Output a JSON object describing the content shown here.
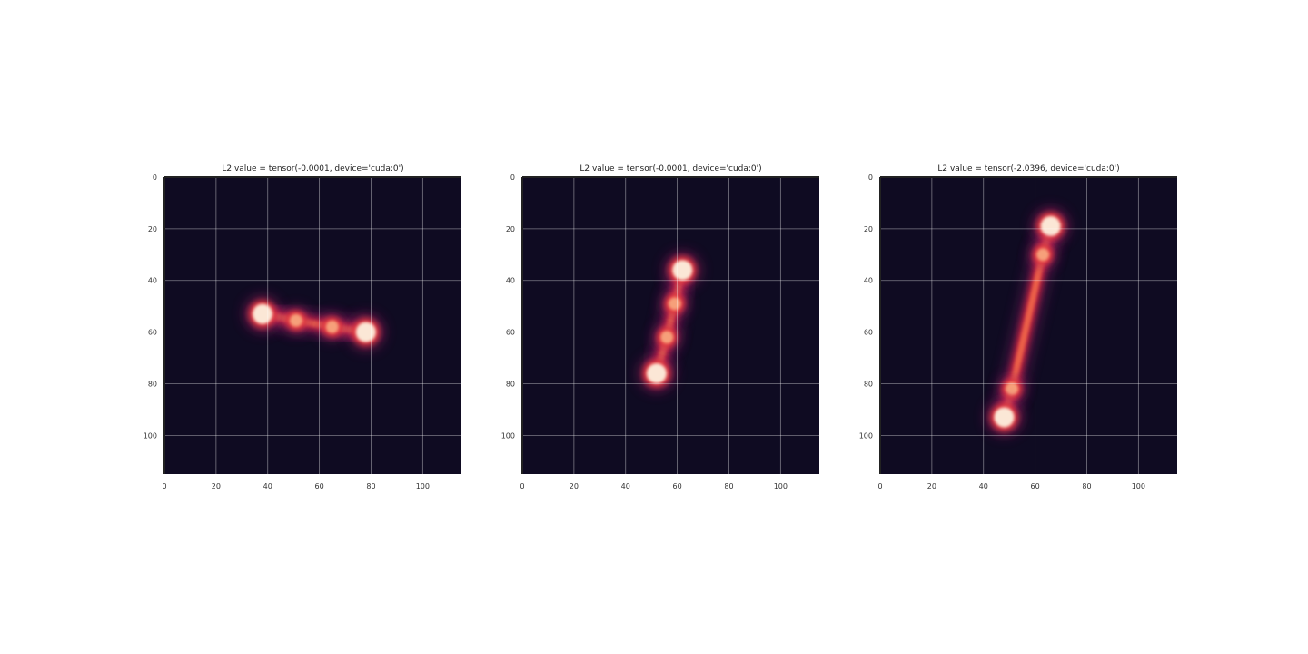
{
  "chart_data": [
    {
      "type": "heatmap",
      "title": "L2 value = tensor(-0.0001, device='cuda:0')",
      "xlim": [
        0,
        115
      ],
      "ylim": [
        115,
        0
      ],
      "xticks": [
        0,
        20,
        40,
        60,
        80,
        100
      ],
      "yticks": [
        0,
        20,
        40,
        60,
        80,
        100
      ],
      "grid": true,
      "colormap": "rocket",
      "background_color": "#0f0b22",
      "blobs": [
        {
          "x": 38,
          "y": 53,
          "intensity": 1.0
        },
        {
          "x": 51,
          "y": 55.5,
          "intensity": 0.75
        },
        {
          "x": 65,
          "y": 58,
          "intensity": 0.75
        },
        {
          "x": 78,
          "y": 60,
          "intensity": 1.0
        }
      ]
    },
    {
      "type": "heatmap",
      "title": "L2 value = tensor(-0.0001, device='cuda:0')",
      "xlim": [
        0,
        115
      ],
      "ylim": [
        115,
        0
      ],
      "xticks": [
        0,
        20,
        40,
        60,
        80,
        100
      ],
      "yticks": [
        0,
        20,
        40,
        60,
        80,
        100
      ],
      "grid": true,
      "colormap": "rocket",
      "background_color": "#0f0b22",
      "blobs": [
        {
          "x": 62,
          "y": 36,
          "intensity": 1.0
        },
        {
          "x": 59,
          "y": 49,
          "intensity": 0.75
        },
        {
          "x": 56,
          "y": 62,
          "intensity": 0.75
        },
        {
          "x": 52,
          "y": 76,
          "intensity": 1.0
        }
      ]
    },
    {
      "type": "heatmap",
      "title": "L2 value = tensor(-2.0396, device='cuda:0')",
      "xlim": [
        0,
        115
      ],
      "ylim": [
        115,
        0
      ],
      "xticks": [
        0,
        20,
        40,
        60,
        80,
        100
      ],
      "yticks": [
        0,
        20,
        40,
        60,
        80,
        100
      ],
      "grid": true,
      "colormap": "rocket",
      "background_color": "#0f0b22",
      "blobs": [
        {
          "x": 66,
          "y": 19,
          "intensity": 1.0
        },
        {
          "x": 63,
          "y": 30,
          "intensity": 0.75
        },
        {
          "x": 51,
          "y": 82,
          "intensity": 0.75
        },
        {
          "x": 48,
          "y": 93,
          "intensity": 1.0
        }
      ]
    }
  ]
}
